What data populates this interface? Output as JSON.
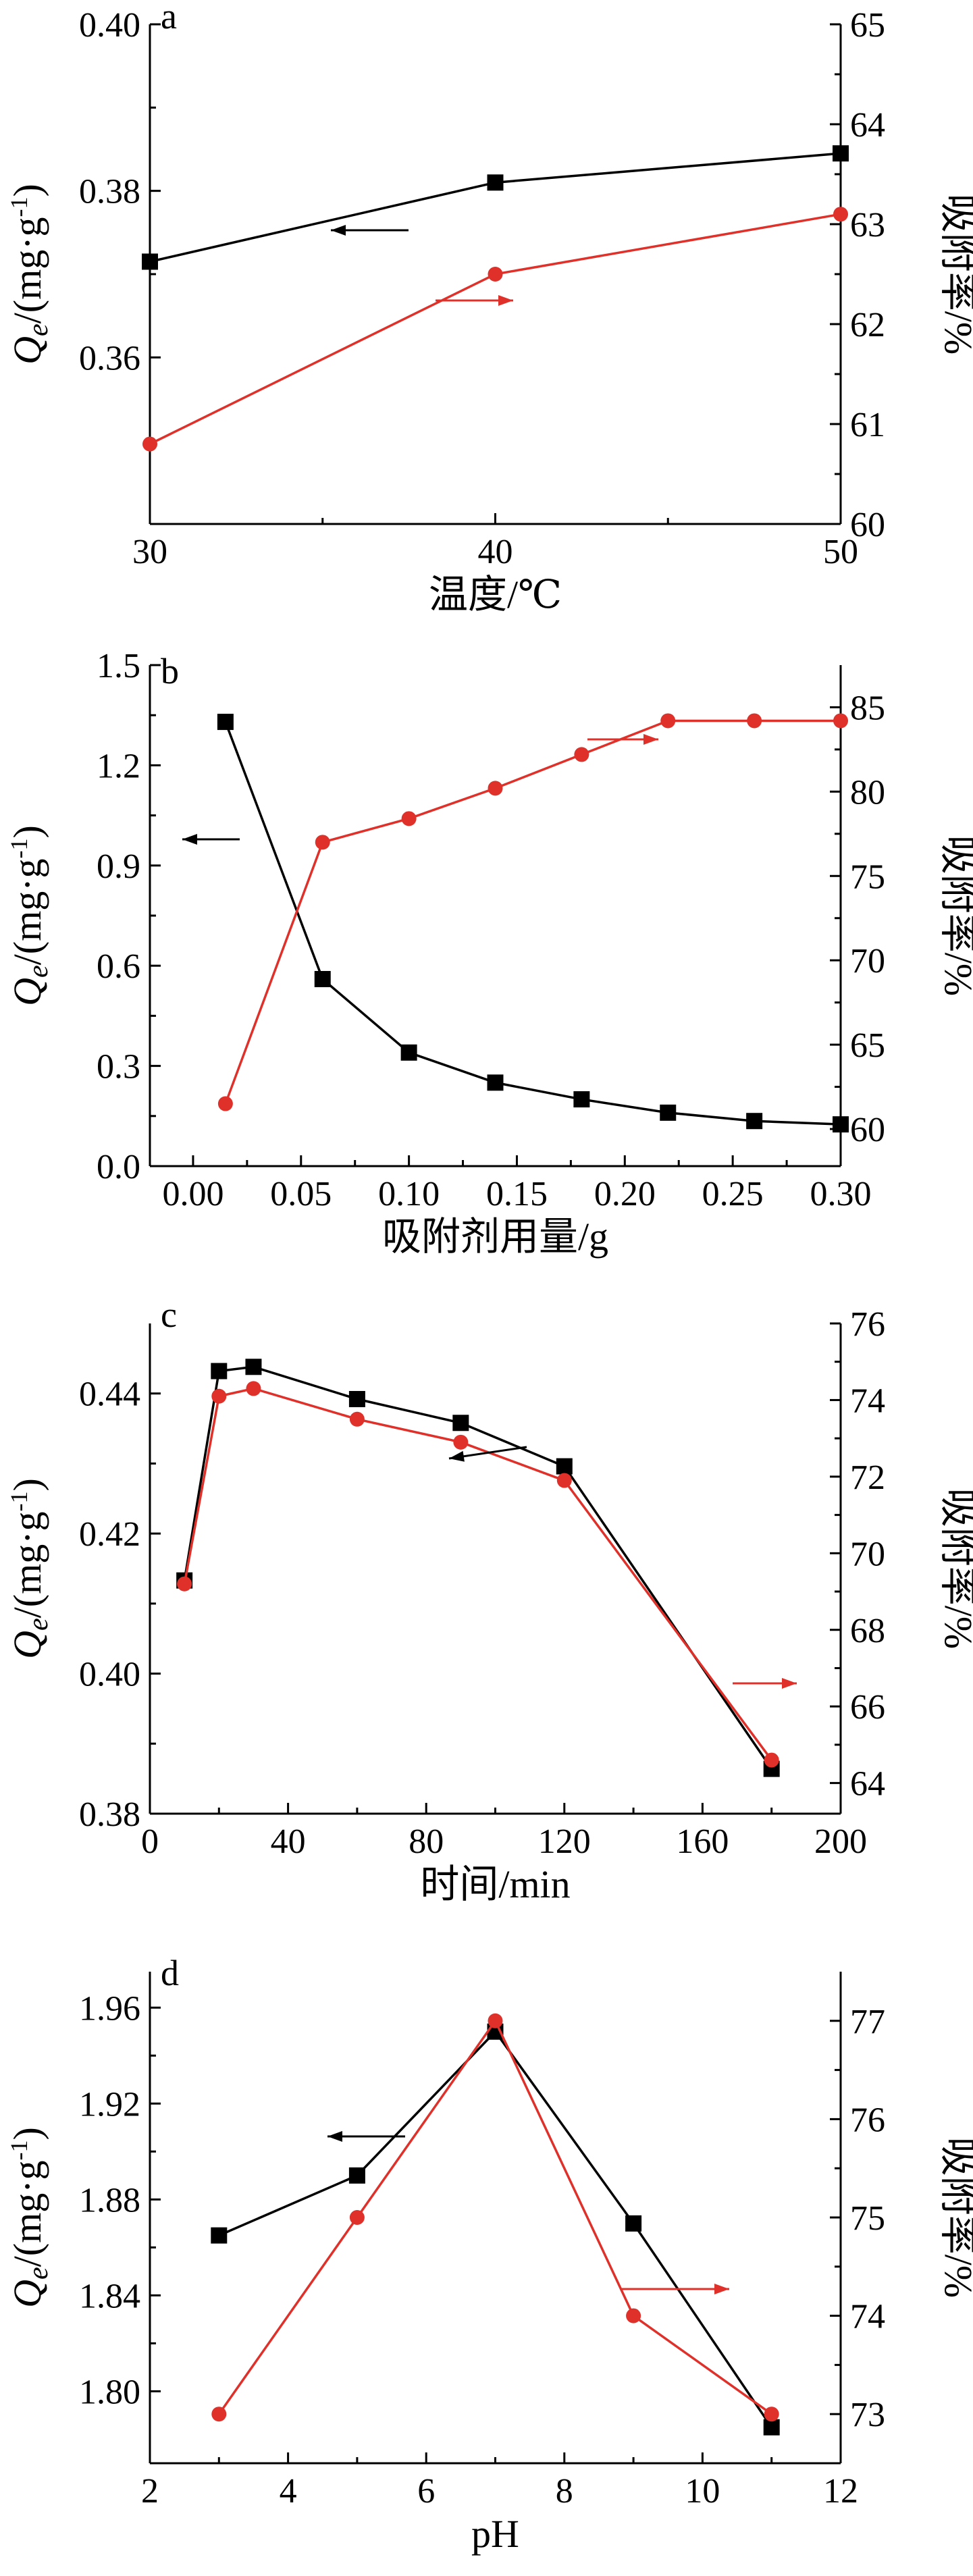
{
  "chart_data": [
    {
      "panel": "a",
      "type": "line",
      "xlabel": "温度/℃",
      "ylabel_left_main": "Q",
      "ylabel_left_sub": "e",
      "ylabel_left_unit": "/(mg·g",
      "ylabel_left_sup": "-1",
      "ylabel_left_close": ")",
      "ylabel_right": "吸附率/%",
      "xlim": [
        30,
        50
      ],
      "xticks": [
        "30",
        "40",
        "50"
      ],
      "ylim_left": [
        0.34,
        0.4
      ],
      "yticks_left": [
        "0.36",
        "0.38",
        "0.40"
      ],
      "ylim_right": [
        60,
        65
      ],
      "yticks_right": [
        "60",
        "61",
        "62",
        "63",
        "64",
        "65"
      ],
      "series": [
        {
          "axis": "left",
          "marker": "square",
          "color": "#000000",
          "x": [
            30,
            40,
            50
          ],
          "values": [
            0.3715,
            0.381,
            0.3845
          ]
        },
        {
          "axis": "right",
          "marker": "circle",
          "color": "#e0302a",
          "x": [
            30,
            40,
            50
          ],
          "values": [
            60.8,
            62.5,
            63.1
          ]
        }
      ]
    },
    {
      "panel": "b",
      "type": "line",
      "xlabel": "吸附剂用量/g",
      "ylabel_left_main": "Q",
      "ylabel_left_sub": "e",
      "ylabel_left_unit": "/(mg·g",
      "ylabel_left_sup": "-1",
      "ylabel_left_close": ")",
      "ylabel_right": "吸附率/%",
      "xlim": [
        -0.02,
        0.3
      ],
      "xticks": [
        "0.00",
        "0.05",
        "0.10",
        "0.15",
        "0.20",
        "0.25",
        "0.30"
      ],
      "ylim_left": [
        0.0,
        1.5
      ],
      "yticks_left": [
        "0.0",
        "0.3",
        "0.6",
        "0.9",
        "1.2",
        "1.5"
      ],
      "ylim_right": [
        57.8,
        87.5
      ],
      "yticks_right": [
        "60",
        "65",
        "70",
        "75",
        "80",
        "85"
      ],
      "series": [
        {
          "axis": "left",
          "marker": "square",
          "color": "#000000",
          "x": [
            0.015,
            0.06,
            0.1,
            0.14,
            0.18,
            0.22,
            0.26,
            0.3
          ],
          "values": [
            1.33,
            0.56,
            0.34,
            0.25,
            0.2,
            0.16,
            0.135,
            0.125
          ]
        },
        {
          "axis": "right",
          "marker": "circle",
          "color": "#e0302a",
          "x": [
            0.015,
            0.06,
            0.1,
            0.14,
            0.18,
            0.22,
            0.26,
            0.3
          ],
          "values": [
            61.5,
            77.0,
            78.4,
            80.2,
            82.2,
            84.2,
            84.2,
            84.2
          ]
        }
      ]
    },
    {
      "panel": "c",
      "type": "line",
      "xlabel": "时间/min",
      "ylabel_left_main": "Q",
      "ylabel_left_sub": "e",
      "ylabel_left_unit": "/(mg·g",
      "ylabel_left_sup": "-1",
      "ylabel_left_close": ")",
      "ylabel_right": "吸附率/%",
      "xlim": [
        0,
        200
      ],
      "xticks": [
        "0",
        "40",
        "80",
        "120",
        "160",
        "200"
      ],
      "ylim_left": [
        0.38,
        0.45
      ],
      "yticks_left": [
        "0.38",
        "0.40",
        "0.42",
        "0.44"
      ],
      "ylim_right": [
        63.2,
        76.0
      ],
      "yticks_right": [
        "64",
        "66",
        "68",
        "70",
        "72",
        "74",
        "76"
      ],
      "series": [
        {
          "axis": "left",
          "marker": "square",
          "color": "#000000",
          "x": [
            10,
            20,
            30,
            60,
            90,
            120,
            180
          ],
          "values": [
            0.4133,
            0.4432,
            0.4438,
            0.4392,
            0.4358,
            0.4296,
            0.3864
          ]
        },
        {
          "axis": "right",
          "marker": "circle",
          "color": "#e0302a",
          "x": [
            10,
            20,
            30,
            60,
            90,
            120,
            180
          ],
          "values": [
            69.2,
            74.1,
            74.3,
            73.5,
            72.9,
            71.9,
            64.6
          ]
        }
      ]
    },
    {
      "panel": "d",
      "type": "line",
      "xlabel": "pH",
      "ylabel_left_main": "Q",
      "ylabel_left_sub": "e",
      "ylabel_left_unit": "/(mg·g",
      "ylabel_left_sup": "-1",
      "ylabel_left_close": ")",
      "ylabel_right": "吸附率/%",
      "xlim": [
        2,
        12
      ],
      "xticks": [
        "2",
        "4",
        "6",
        "8",
        "10",
        "12"
      ],
      "ylim_left": [
        1.77,
        1.975
      ],
      "yticks_left": [
        "1.80",
        "1.84",
        "1.88",
        "1.92",
        "1.96"
      ],
      "ylim_right": [
        72.5,
        77.5
      ],
      "yticks_right": [
        "73",
        "74",
        "75",
        "76",
        "77"
      ],
      "series": [
        {
          "axis": "left",
          "marker": "square",
          "color": "#000000",
          "x": [
            3,
            5,
            7,
            9,
            11
          ],
          "values": [
            1.865,
            1.89,
            1.95,
            1.87,
            1.785
          ]
        },
        {
          "axis": "right",
          "marker": "circle",
          "color": "#e0302a",
          "x": [
            3,
            5,
            7,
            9,
            11
          ],
          "values": [
            73.0,
            75.0,
            77.0,
            74.0,
            73.0
          ]
        }
      ]
    }
  ]
}
